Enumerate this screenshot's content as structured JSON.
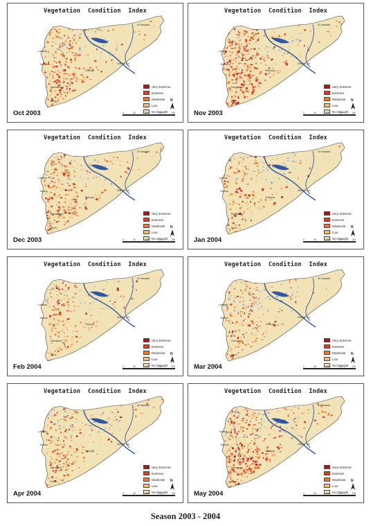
{
  "panel_title": "Vegetation  Condition  Index",
  "legend": [
    {
      "label": "Very Extreme",
      "color": "#b2161c"
    },
    {
      "label": "Extreme",
      "color": "#e63a1e"
    },
    {
      "label": "Moderate",
      "color": "#f07a2a"
    },
    {
      "label": "Low",
      "color": "#f6bd71"
    },
    {
      "label": "No Drought",
      "color": "#f1e3b6"
    }
  ],
  "panels": [
    {
      "month": "Oct 2003",
      "intensity": 0.55
    },
    {
      "month": "Nov 2003",
      "intensity": 0.85
    },
    {
      "month": "Dec 2003",
      "intensity": 0.45
    },
    {
      "month": "Jan 2004",
      "intensity": 0.2
    },
    {
      "month": "Feb 2004",
      "intensity": 0.22
    },
    {
      "month": "Mar 2004",
      "intensity": 0.2
    },
    {
      "month": "Apr 2004",
      "intensity": 0.3
    },
    {
      "month": "May 2004",
      "intensity": 0.9
    }
  ],
  "city_labels": [
    "Lattakia",
    "Tartous",
    "Al Hasakah",
    "Deir Ez-Zor",
    "Palmyra",
    "Damascus",
    "Der'a"
  ],
  "north_label": "N",
  "scale_ticks": [
    "0",
    "50",
    "100",
    "150",
    "200"
  ],
  "season_caption": "Season 2003 - 2004",
  "colors": {
    "land": "#f1e3b6",
    "water": "#8aa6d6",
    "river": "#2f56a6",
    "border": "#444444"
  }
}
